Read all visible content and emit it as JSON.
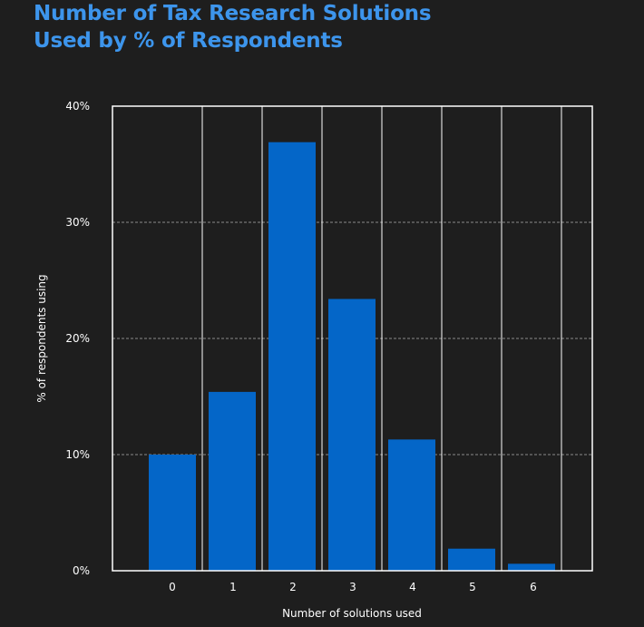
{
  "chart_data": {
    "type": "bar",
    "title_lines": [
      "Number of Tax Research Solutions",
      "Used by % of Respondents"
    ],
    "categories": [
      "0",
      "1",
      "2",
      "3",
      "4",
      "5",
      "6"
    ],
    "values": [
      10.0,
      15.4,
      36.9,
      23.4,
      11.3,
      1.9,
      0.6
    ],
    "xlabel": "Number of solutions used",
    "ylabel": "% of respondents using",
    "ylim": [
      0,
      40
    ],
    "yticks": [
      0,
      10,
      20,
      30,
      40
    ],
    "ytick_labels": [
      "0%",
      "10%",
      "20%",
      "30%",
      "40%"
    ],
    "grid": "horizontal dashed, vertical between bars",
    "legend": "none",
    "colors": {
      "bar": "#0466c8",
      "title": "#3d95ec",
      "background": "#1e1e1e",
      "text": "#ffffff",
      "axis": "#ffffff",
      "grid": "#8a8a8a"
    }
  }
}
